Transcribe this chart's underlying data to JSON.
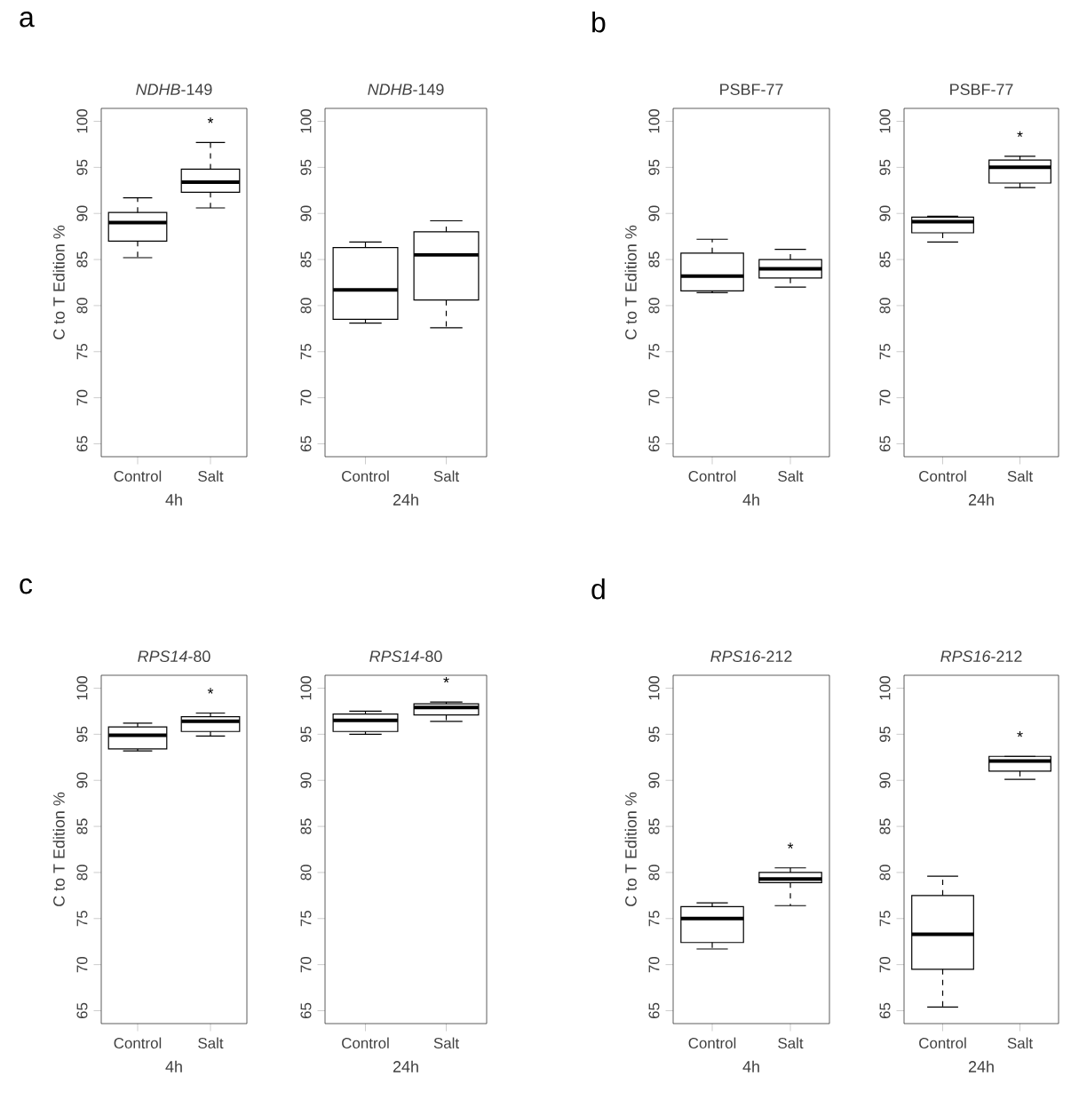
{
  "chart_data": [
    {
      "type": "box",
      "title": "*NDHB*-149",
      "xlabel": "4h",
      "ylabel": "C to T Edition %",
      "categories": [
        "Control",
        "Salt"
      ],
      "ylim": [
        63.6,
        101.4
      ],
      "yticks": [
        65,
        70,
        75,
        80,
        85,
        90,
        95,
        100
      ],
      "boxes": [
        {
          "low": 85.2,
          "q1": 87.0,
          "median": 89.0,
          "q3": 90.1,
          "high": 91.7
        },
        {
          "low": 90.6,
          "q1": 92.3,
          "median": 93.4,
          "q3": 94.8,
          "high": 97.7
        }
      ],
      "annotations": [
        "a",
        "*"
      ]
    },
    {
      "type": "box",
      "title": "*NDHB*-149",
      "xlabel": "24h",
      "categories": [
        "Control",
        "Salt"
      ],
      "ylim": [
        63.6,
        101.4
      ],
      "yticks": [
        65,
        70,
        75,
        80,
        85,
        90,
        95,
        100
      ],
      "boxes": [
        {
          "low": 78.1,
          "q1": 78.5,
          "median": 81.7,
          "q3": 86.3,
          "high": 86.9
        },
        {
          "low": 77.6,
          "q1": 80.6,
          "median": 85.5,
          "q3": 88.0,
          "high": 89.2
        }
      ]
    },
    {
      "type": "box",
      "title": "PSBF-77",
      "xlabel": "4h",
      "ylabel": "C to T Edition %",
      "categories": [
        "Control",
        "Salt"
      ],
      "ylim": [
        63.6,
        101.4
      ],
      "yticks": [
        65,
        70,
        75,
        80,
        85,
        90,
        95,
        100
      ],
      "boxes": [
        {
          "low": 81.4,
          "q1": 81.6,
          "median": 83.2,
          "q3": 85.7,
          "high": 87.2
        },
        {
          "low": 82.0,
          "q1": 83.0,
          "median": 84.0,
          "q3": 85.0,
          "high": 86.1
        }
      ],
      "annotations": [
        "b"
      ]
    },
    {
      "type": "box",
      "title": "PSBF-77",
      "xlabel": "24h",
      "categories": [
        "Control",
        "Salt"
      ],
      "ylim": [
        63.6,
        101.4
      ],
      "yticks": [
        65,
        70,
        75,
        80,
        85,
        90,
        95,
        100
      ],
      "boxes": [
        {
          "low": 86.9,
          "q1": 87.9,
          "median": 89.1,
          "q3": 89.6,
          "high": 89.7
        },
        {
          "low": 92.8,
          "q1": 93.3,
          "median": 95.0,
          "q3": 95.8,
          "high": 96.2
        }
      ],
      "annotations": [
        "*"
      ]
    },
    {
      "type": "box",
      "title": "*RPS14*-80",
      "xlabel": "4h",
      "ylabel": "C to T Edition %",
      "categories": [
        "Control",
        "Salt"
      ],
      "ylim": [
        63.6,
        101.4
      ],
      "yticks": [
        65,
        70,
        75,
        80,
        85,
        90,
        95,
        100
      ],
      "boxes": [
        {
          "low": 93.2,
          "q1": 93.4,
          "median": 94.9,
          "q3": 95.8,
          "high": 96.2
        },
        {
          "low": 94.8,
          "q1": 95.3,
          "median": 96.4,
          "q3": 96.9,
          "high": 97.3
        }
      ],
      "annotations": [
        "c",
        "*"
      ]
    },
    {
      "type": "box",
      "title": "*RPS14*-80",
      "xlabel": "24h",
      "categories": [
        "Control",
        "Salt"
      ],
      "ylim": [
        63.6,
        101.4
      ],
      "yticks": [
        65,
        70,
        75,
        80,
        85,
        90,
        95,
        100
      ],
      "boxes": [
        {
          "low": 95.0,
          "q1": 95.3,
          "median": 96.5,
          "q3": 97.2,
          "high": 97.5
        },
        {
          "low": 96.4,
          "q1": 97.1,
          "median": 97.9,
          "q3": 98.3,
          "high": 98.5
        }
      ],
      "annotations": [
        "*"
      ]
    },
    {
      "type": "box",
      "title": "*RPS16*-212",
      "xlabel": "4h",
      "ylabel": "C to T Edition %",
      "categories": [
        "Control",
        "Salt"
      ],
      "ylim": [
        63.6,
        101.4
      ],
      "yticks": [
        65,
        70,
        75,
        80,
        85,
        90,
        95,
        100
      ],
      "boxes": [
        {
          "low": 71.7,
          "q1": 72.4,
          "median": 75.0,
          "q3": 76.3,
          "high": 76.7
        },
        {
          "low": 76.4,
          "q1": 78.9,
          "median": 79.3,
          "q3": 80.0,
          "high": 80.5
        }
      ],
      "annotations": [
        "d",
        "*"
      ]
    },
    {
      "type": "box",
      "title": "*RPS16*-212",
      "xlabel": "24h",
      "categories": [
        "Control",
        "Salt"
      ],
      "ylim": [
        63.6,
        101.4
      ],
      "yticks": [
        65,
        70,
        75,
        80,
        85,
        90,
        95,
        100
      ],
      "boxes": [
        {
          "low": 65.4,
          "q1": 69.5,
          "median": 73.3,
          "q3": 77.5,
          "high": 79.6
        },
        {
          "low": 90.1,
          "q1": 91.0,
          "median": 92.1,
          "q3": 92.6,
          "high": 92.6
        }
      ],
      "annotations": [
        "*"
      ]
    }
  ]
}
